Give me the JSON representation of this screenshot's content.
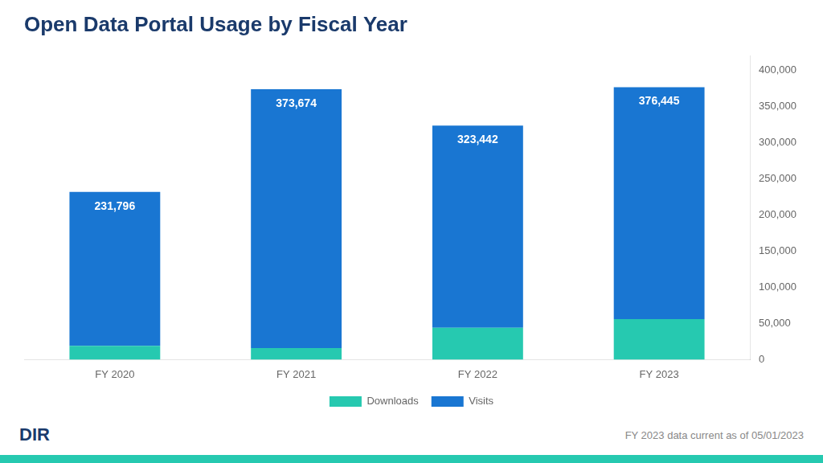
{
  "chart_data": {
    "type": "bar",
    "title": "Open Data Portal Usage by Fiscal Year",
    "categories": [
      "FY 2020",
      "FY 2021",
      "FY 2022",
      "FY 2023"
    ],
    "series": [
      {
        "name": "Downloads",
        "color": "#26c9b0",
        "values": [
          19000,
          16000,
          44000,
          56000
        ]
      },
      {
        "name": "Visits",
        "color": "#1976d2",
        "values": [
          212796,
          357674,
          279442,
          320445
        ]
      }
    ],
    "totals": [
      231796,
      373674,
      323442,
      376445
    ],
    "total_labels": [
      "231,796",
      "373,674",
      "323,442",
      "376,445"
    ],
    "stacked": true,
    "ylim": [
      0,
      420000
    ],
    "yticks": [
      0,
      {
        "value": 50000,
        "label": "50,000"
      },
      {
        "value": 100000,
        "label": "100,000"
      },
      {
        "value": 150000,
        "label": "150,000"
      },
      {
        "value": 200000,
        "label": "200,000"
      },
      {
        "value": 250000,
        "label": "250,000"
      },
      {
        "value": 300000,
        "label": "300,000"
      },
      {
        "value": 350000,
        "label": "350,000"
      },
      {
        "value": 400000,
        "label": "400,000"
      }
    ],
    "grid": false,
    "legend": "bottom",
    "footnote": "FY 2023 data current as of 05/01/2023",
    "annotations": [
      "DIR"
    ]
  }
}
